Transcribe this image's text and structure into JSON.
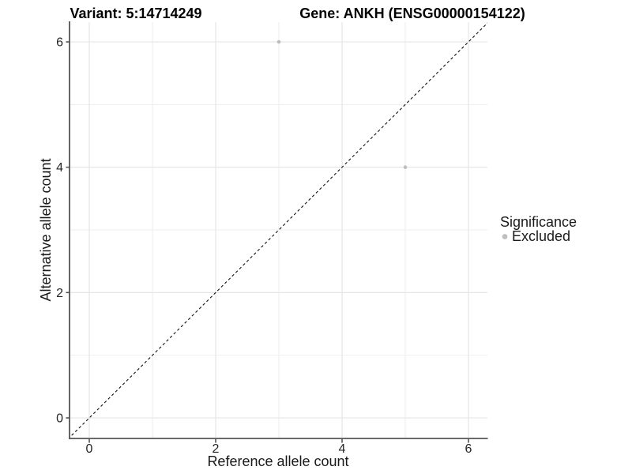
{
  "chart_data": {
    "type": "scatter",
    "title_left": "Variant: 5:14714249",
    "title_right": "Gene: ANKH (ENSG00000154122)",
    "xlabel": "Reference allele count",
    "ylabel": "Alternative allele count",
    "xlim": [
      -0.31,
      6.3
    ],
    "ylim": [
      -0.33,
      6.33
    ],
    "x_ticks": [
      0,
      2,
      4,
      6
    ],
    "y_ticks": [
      0,
      2,
      4,
      6
    ],
    "x_minor_ticks": [
      1,
      3,
      5
    ],
    "y_minor_ticks": [
      1,
      3,
      5
    ],
    "grid": "on",
    "series": [
      {
        "name": "Excluded",
        "color": "#bdbdbd",
        "points": [
          {
            "x": 3,
            "y": 6
          },
          {
            "x": 5,
            "y": 4
          }
        ]
      }
    ],
    "reference_line": {
      "type": "identity",
      "slope": 1,
      "intercept": 0,
      "style": "dashed",
      "color": "#111111"
    },
    "legend": {
      "title": "Significance",
      "position": "right",
      "entries": [
        {
          "label": "Excluded",
          "color": "#bdbdbd"
        }
      ]
    },
    "colors": {
      "background": "#ffffff",
      "grid_major": "#e3e3e3",
      "grid_minor": "#eeeeee",
      "axis": "#555555",
      "point": "#bdbdbd"
    }
  }
}
